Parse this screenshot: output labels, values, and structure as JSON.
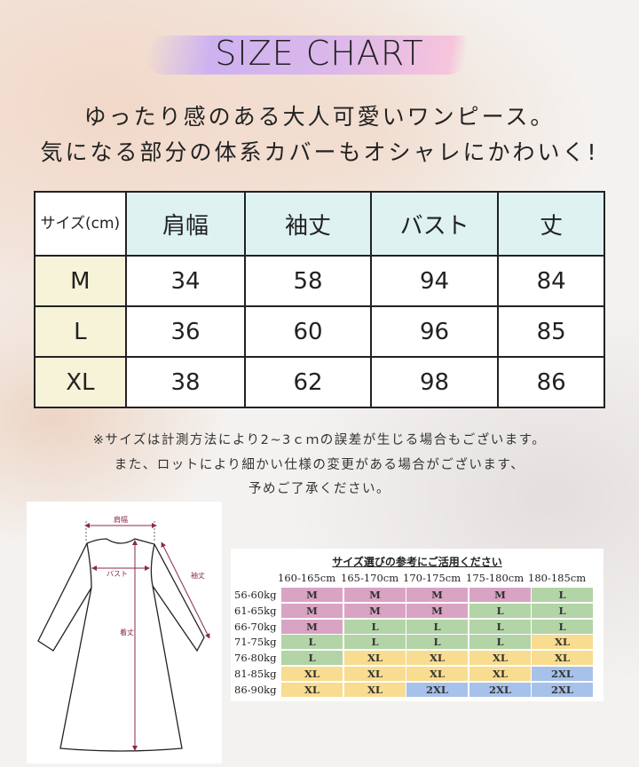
{
  "title": "SIZE CHART",
  "tagline": [
    "ゆったり感のある大人可愛いワンピース。",
    "気になる部分の体系カバーもオシャレにかわいく!"
  ],
  "size_table": {
    "header": [
      "サイズ(cm)",
      "肩幅",
      "袖丈",
      "バスト",
      "丈"
    ],
    "rows": [
      [
        "M",
        "34",
        "58",
        "94",
        "84"
      ],
      [
        "L",
        "36",
        "60",
        "96",
        "85"
      ],
      [
        "XL",
        "38",
        "62",
        "98",
        "86"
      ]
    ]
  },
  "notes": [
    "※サイズは計測方法により2~3ｃｍの誤差が生じる場合もございます。",
    "また、ロットにより細かい仕様の変更がある場合がございます、",
    "予めご了承ください。"
  ],
  "diagram": {
    "labels": {
      "shoulder": "肩幅",
      "bust": "バスト",
      "sleeve": "袖丈",
      "length": "着丈"
    }
  },
  "reference": {
    "title": "サイズ選びの参考にご活用ください",
    "heights": [
      "160-165cm",
      "165-170cm",
      "170-175cm",
      "175-180cm",
      "180-185cm"
    ],
    "weights": [
      "56-60kg",
      "61-65kg",
      "66-70kg",
      "71-75kg",
      "76-80kg",
      "81-85kg",
      "86-90kg"
    ],
    "grid": [
      [
        "M",
        "M",
        "M",
        "M",
        "L"
      ],
      [
        "M",
        "M",
        "M",
        "L",
        "L"
      ],
      [
        "M",
        "L",
        "L",
        "L",
        "L"
      ],
      [
        "L",
        "L",
        "L",
        "L",
        "XL"
      ],
      [
        "L",
        "XL",
        "XL",
        "XL",
        "XL"
      ],
      [
        "XL",
        "XL",
        "XL",
        "XL",
        "2XL"
      ],
      [
        "XL",
        "XL",
        "2XL",
        "2XL",
        "2XL"
      ]
    ],
    "colors": {
      "M": "#d9a3c4",
      "L": "#b3d4a6",
      "XL": "#f8dc8f",
      "2XL": "#a6c2ea"
    }
  }
}
